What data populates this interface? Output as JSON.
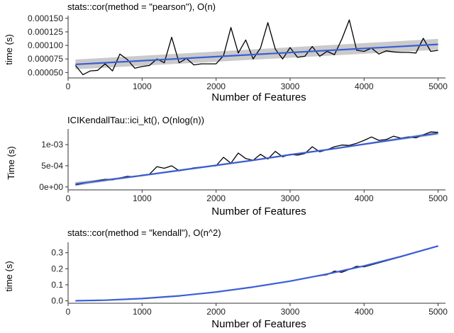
{
  "colors": {
    "raw": "#000000",
    "fit": "#3b5ed6",
    "band": "#b8b8b8",
    "axis": "#333333"
  },
  "chart_data": [
    {
      "type": "line",
      "title": "stats::cor(method = \"pearson\"), O(n)",
      "xlabel": "Number of Features",
      "ylabel": "time (s)",
      "xlim": [
        0,
        5100
      ],
      "ylim": [
        4e-05,
        0.000155
      ],
      "xticks": [
        0,
        1000,
        2000,
        3000,
        4000,
        5000
      ],
      "xtick_labels": [
        "0",
        "1000",
        "2000",
        "3000",
        "4000",
        "5000"
      ],
      "yticks": [
        5e-05,
        7.5e-05,
        0.0001,
        0.000125,
        0.00015
      ],
      "ytick_labels": [
        "0.000050",
        "0.000075",
        "0.000100",
        "0.000125",
        "0.000150"
      ],
      "series": [
        {
          "name": "observed",
          "x": [
            100,
            200,
            300,
            400,
            500,
            600,
            700,
            800,
            900,
            1000,
            1100,
            1200,
            1300,
            1400,
            1500,
            1600,
            1700,
            1800,
            1900,
            2000,
            2100,
            2200,
            2300,
            2400,
            2500,
            2600,
            2700,
            2800,
            2900,
            3000,
            3100,
            3200,
            3300,
            3400,
            3500,
            3600,
            3700,
            3800,
            3900,
            4000,
            4100,
            4200,
            4300,
            4400,
            4500,
            4600,
            4700,
            4800,
            4900,
            5000
          ],
          "y": [
            6.3e-05,
            4.6e-05,
            5.3e-05,
            5.4e-05,
            6.6e-05,
            5.3e-05,
            8.4e-05,
            7.4e-05,
            5.8e-05,
            6.1e-05,
            6.3e-05,
            7.5e-05,
            6.8e-05,
            0.000115,
            6.8e-05,
            7.6e-05,
            6.4e-05,
            6.6e-05,
            6.6e-05,
            6.6e-05,
            8.1e-05,
            0.000133,
            8.6e-05,
            0.00011,
            7.5e-05,
            9.5e-05,
            0.000142,
            9.3e-05,
            7.5e-05,
            9.6e-05,
            7.8e-05,
            8e-05,
            9.8e-05,
            8e-05,
            8.9e-05,
            8.3e-05,
            0.000112,
            0.000147,
            9.1e-05,
            8.9e-05,
            9.5e-05,
            8.4e-05,
            9e-05,
            8.8e-05,
            8.7e-05,
            8.7e-05,
            8.6e-05,
            0.000113,
            8.9e-05,
            9.1e-05
          ]
        },
        {
          "name": "fit",
          "x": [
            100,
            5000
          ],
          "y": [
            6.5e-05,
            0.000102
          ],
          "band_lower": [
            5.6e-05,
            9.2e-05
          ],
          "band_upper": [
            7.4e-05,
            0.000112
          ]
        }
      ]
    },
    {
      "type": "line",
      "title": "ICIKendallTau::ici_kt(), O(nlog(n))",
      "xlabel": "Number of Features",
      "ylabel": "Time (s)",
      "xlim": [
        0,
        5100
      ],
      "ylim": [
        -7e-05,
        0.00137
      ],
      "xticks": [
        0,
        1000,
        2000,
        3000,
        4000,
        5000
      ],
      "xtick_labels": [
        "0",
        "1000",
        "2000",
        "3000",
        "4000",
        "5000"
      ],
      "yticks": [
        0,
        0.0005,
        0.001
      ],
      "ytick_labels": [
        "0e+00",
        "5e-04",
        "1e-03"
      ],
      "series": [
        {
          "name": "observed",
          "x": [
            100,
            200,
            300,
            400,
            500,
            600,
            700,
            800,
            900,
            1000,
            1100,
            1200,
            1300,
            1400,
            1500,
            1600,
            1700,
            1800,
            1900,
            2000,
            2100,
            2200,
            2300,
            2400,
            2500,
            2600,
            2700,
            2800,
            2900,
            3000,
            3100,
            3200,
            3300,
            3400,
            3500,
            3600,
            3700,
            3800,
            3900,
            4000,
            4100,
            4200,
            4300,
            4400,
            4500,
            4600,
            4700,
            4800,
            4900,
            5000
          ],
          "y": [
            5e-05,
            8e-05,
            0.00012,
            0.00015,
            0.00018,
            0.00017,
            0.00021,
            0.00025,
            0.00024,
            0.00028,
            0.0003,
            0.00048,
            0.00044,
            0.0005,
            0.00038,
            0.00041,
            0.00045,
            0.00047,
            0.00049,
            0.0005,
            0.0007,
            0.00056,
            0.0008,
            0.00067,
            0.00063,
            0.00077,
            0.00066,
            0.00084,
            0.00071,
            0.00077,
            0.00075,
            0.00079,
            0.00095,
            0.00083,
            0.00088,
            0.00095,
            0.00099,
            0.00098,
            0.00103,
            0.0011,
            0.00118,
            0.0011,
            0.00112,
            0.0012,
            0.00115,
            0.00118,
            0.00116,
            0.00123,
            0.0013,
            0.00129
          ]
        },
        {
          "name": "fit",
          "x": [
            100,
            500,
            1000,
            1500,
            2000,
            2500,
            3000,
            3500,
            4000,
            4500,
            5000
          ],
          "y": [
            7e-05,
            0.00016,
            0.00027,
            0.00039,
            0.00051,
            0.00063,
            0.00076,
            0.00088,
            0.00101,
            0.00114,
            0.00127
          ],
          "band_lower": [
            2e-05,
            0.00013,
            0.00025,
            0.00037,
            0.00049,
            0.00061,
            0.00074,
            0.00086,
            0.00099,
            0.00111,
            0.00123
          ],
          "band_upper": [
            0.00012,
            0.00019,
            0.00029,
            0.00041,
            0.00053,
            0.00065,
            0.00078,
            0.0009,
            0.00103,
            0.00117,
            0.00131
          ]
        }
      ]
    },
    {
      "type": "line",
      "title": "stats::cor(method = \"kendall\"), O(n^2)",
      "xlabel": "Number of Features",
      "ylabel": "time (s)",
      "xlim": [
        0,
        5100
      ],
      "ylim": [
        -0.015,
        0.365
      ],
      "xticks": [
        0,
        1000,
        2000,
        3000,
        4000,
        5000
      ],
      "xtick_labels": [
        "0",
        "1000",
        "2000",
        "3000",
        "4000",
        "5000"
      ],
      "yticks": [
        0.0,
        0.1,
        0.2,
        0.3
      ],
      "ytick_labels": [
        "0.0",
        "0.1",
        "0.2",
        "0.3"
      ],
      "series": [
        {
          "name": "observed",
          "x": [
            100,
            500,
            1000,
            1500,
            2000,
            2500,
            3000,
            3300,
            3500,
            3600,
            3700,
            3800,
            3900,
            4000,
            4500,
            5000
          ],
          "y": [
            0.001,
            0.004,
            0.015,
            0.032,
            0.056,
            0.086,
            0.122,
            0.15,
            0.163,
            0.185,
            0.178,
            0.196,
            0.215,
            0.212,
            0.275,
            0.342
          ]
        },
        {
          "name": "fit",
          "x": [
            100,
            500,
            1000,
            1500,
            2000,
            2500,
            3000,
            3500,
            4000,
            4500,
            5000
          ],
          "y": [
            0.0005,
            0.004,
            0.014,
            0.031,
            0.055,
            0.086,
            0.123,
            0.167,
            0.218,
            0.277,
            0.342
          ],
          "band_lower": [
            0.0,
            0.003,
            0.013,
            0.03,
            0.054,
            0.085,
            0.122,
            0.166,
            0.217,
            0.275,
            0.339
          ],
          "band_upper": [
            0.001,
            0.005,
            0.015,
            0.032,
            0.056,
            0.087,
            0.124,
            0.168,
            0.219,
            0.279,
            0.345
          ]
        }
      ]
    }
  ]
}
